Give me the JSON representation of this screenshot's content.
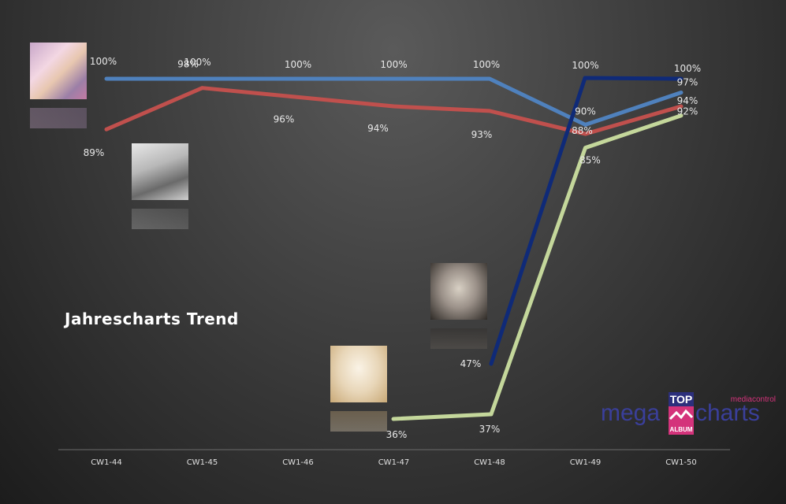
{
  "chart_data": {
    "type": "line",
    "title": "Jahrescharts Trend",
    "categories": [
      "CW1-44",
      "CW1-45",
      "CW1-46",
      "CW1-47",
      "CW1-48",
      "CW1-49",
      "CW1-50"
    ],
    "series": [
      {
        "color": "#4f81bd",
        "values": [
          100,
          100,
          100,
          100,
          100,
          90,
          97
        ],
        "labels": [
          "100%",
          "100%",
          "100%",
          "100%",
          "100%",
          "90%",
          "97%"
        ]
      },
      {
        "color": "#c0504d",
        "values": [
          89,
          98,
          96,
          94,
          93,
          88,
          94
        ],
        "labels": [
          "89%",
          "98%",
          "96%",
          "94%",
          "93%",
          "88%",
          "94%"
        ]
      },
      {
        "color": "#0f2a78",
        "values": [
          null,
          null,
          null,
          null,
          47,
          100,
          100
        ],
        "labels": [
          "",
          "",
          "",
          "",
          "47%",
          "100%",
          "100%"
        ]
      },
      {
        "color": "#c4d79b",
        "values": [
          null,
          null,
          null,
          36,
          37,
          85,
          92
        ],
        "labels": [
          "",
          "",
          "",
          "36%",
          "37%",
          "85%",
          "92%"
        ]
      }
    ],
    "grid": false,
    "legend": "none"
  },
  "logo": {
    "top": "TOP",
    "brand_left": "mega",
    "brand_right": "charts",
    "sub": "mediacontrol",
    "album": "ALBUM"
  }
}
